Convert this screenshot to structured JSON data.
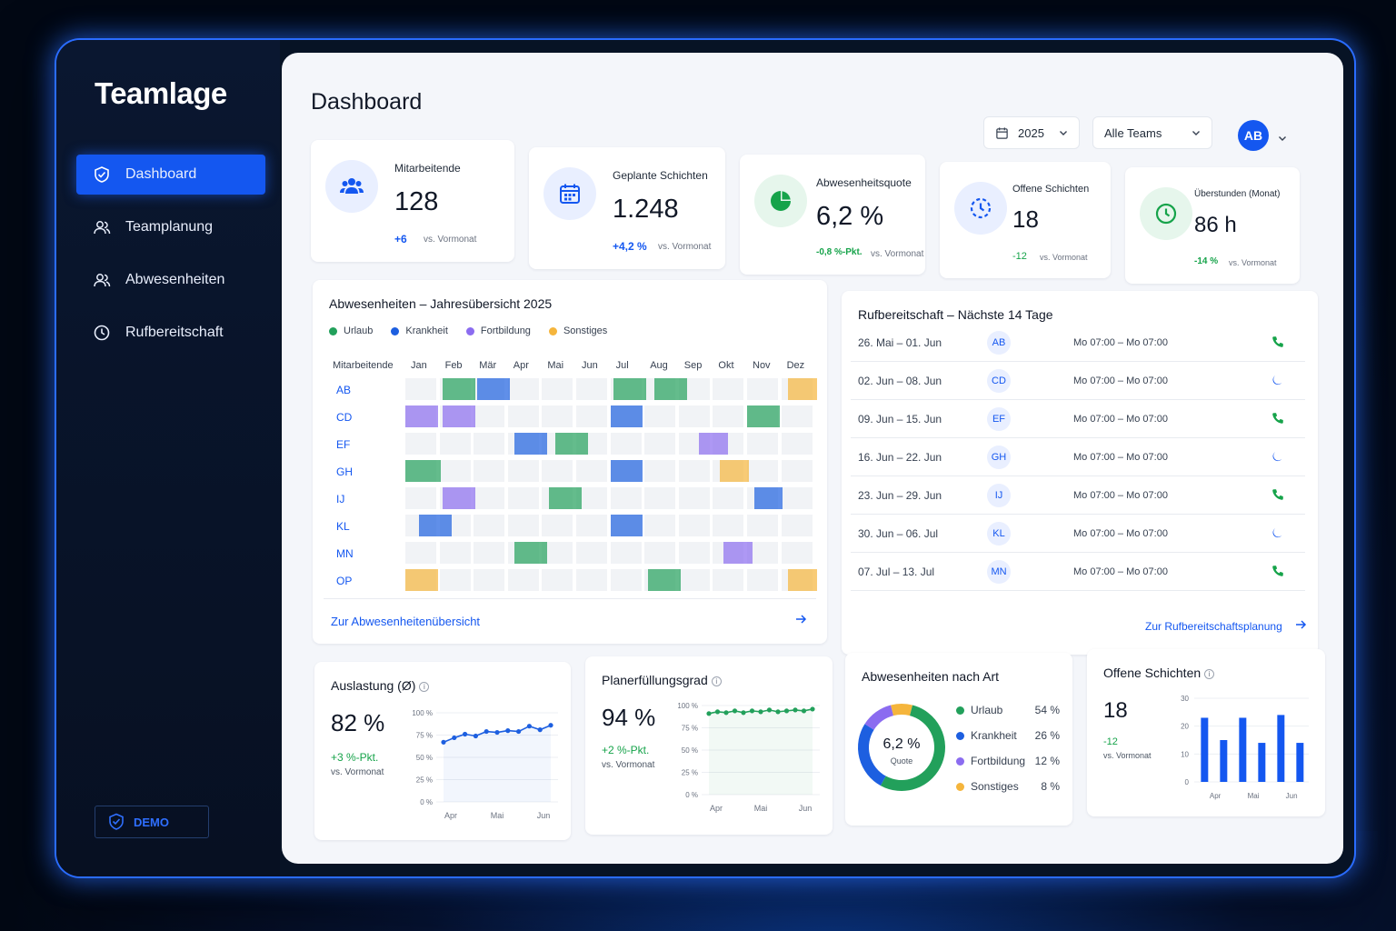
{
  "app": {
    "name": "Teamlage",
    "demo_label": "DEMO"
  },
  "colors": {
    "accent": "#1457f0",
    "green": "#16a34a",
    "urlaub": "#22a05b",
    "krankheit": "#1d5fe0",
    "fortbildung": "#8b6cf0",
    "sonstiges": "#f5b53c"
  },
  "sidebar": {
    "items": [
      {
        "label": "Dashboard",
        "icon": "shield-check-icon",
        "active": true
      },
      {
        "label": "Teamplanung",
        "icon": "users-icon",
        "active": false
      },
      {
        "label": "Abwesenheiten",
        "icon": "users-icon",
        "active": false
      },
      {
        "label": "Rufbereitschaft",
        "icon": "clock-icon",
        "active": false
      }
    ]
  },
  "header": {
    "title": "Dashboard",
    "year": "2025",
    "team": "Alle Teams",
    "avatar": "AB"
  },
  "kpis": [
    {
      "label": "Mitarbeitende",
      "value": "128",
      "delta": "+6",
      "vs": "vs. Vormonat",
      "icon": "users-icon"
    },
    {
      "label": "Geplante Schichten",
      "value": "1.248",
      "delta": "+4,2 %",
      "vs": "vs. Vormonat",
      "icon": "calendar-icon"
    },
    {
      "label": "Abwesenheitsquote",
      "value": "6,2 %",
      "delta": "-0,8 %-Pkt.",
      "vs": "vs. Vormonat",
      "icon": "pie-icon"
    },
    {
      "label": "Offene Schichten",
      "value": "18",
      "delta": "-12",
      "vs": "vs. Vormonat",
      "icon": "clock-dashed-icon"
    },
    {
      "label": "Überstunden (Monat)",
      "value": "86 h",
      "delta": "-14 %",
      "vs": "vs. Vormonat",
      "icon": "clock-icon"
    }
  ],
  "absences": {
    "title": "Abwesenheiten – Jahresübersicht 2025",
    "legend": [
      "Urlaub",
      "Krankheit",
      "Fortbildung",
      "Sonstiges"
    ],
    "col_header": "Mitarbeitende",
    "months": [
      "Jan",
      "Feb",
      "Mär",
      "Apr",
      "Mai",
      "Jun",
      "Jul",
      "Aug",
      "Sep",
      "Okt",
      "Nov",
      "Dez"
    ],
    "employees": [
      "AB",
      "CD",
      "EF",
      "GH",
      "IJ",
      "KL",
      "MN",
      "OP"
    ],
    "entries": [
      {
        "row": 0,
        "month": 1.1,
        "length": 1,
        "type": "urlaub"
      },
      {
        "row": 0,
        "month": 2.1,
        "length": 1,
        "type": "krankheit"
      },
      {
        "row": 0,
        "month": 6.1,
        "length": 1,
        "type": "urlaub"
      },
      {
        "row": 0,
        "month": 7.3,
        "length": 1,
        "type": "urlaub"
      },
      {
        "row": 0,
        "month": 11.2,
        "length": 0.9,
        "type": "sonstiges"
      },
      {
        "row": 1,
        "month": 0.0,
        "length": 1,
        "type": "fortbildung"
      },
      {
        "row": 1,
        "month": 1.1,
        "length": 1,
        "type": "fortbildung"
      },
      {
        "row": 1,
        "month": 6.0,
        "length": 1,
        "type": "krankheit"
      },
      {
        "row": 1,
        "month": 10.0,
        "length": 1,
        "type": "urlaub"
      },
      {
        "row": 2,
        "month": 3.2,
        "length": 1,
        "type": "krankheit"
      },
      {
        "row": 2,
        "month": 4.4,
        "length": 1,
        "type": "urlaub"
      },
      {
        "row": 2,
        "month": 8.6,
        "length": 0.9,
        "type": "fortbildung"
      },
      {
        "row": 3,
        "month": 0.0,
        "length": 1.1,
        "type": "urlaub"
      },
      {
        "row": 3,
        "month": 6.0,
        "length": 1,
        "type": "krankheit"
      },
      {
        "row": 3,
        "month": 9.2,
        "length": 0.9,
        "type": "sonstiges"
      },
      {
        "row": 4,
        "month": 1.1,
        "length": 1,
        "type": "fortbildung"
      },
      {
        "row": 4,
        "month": 4.2,
        "length": 1,
        "type": "urlaub"
      },
      {
        "row": 4,
        "month": 10.2,
        "length": 0.9,
        "type": "krankheit"
      },
      {
        "row": 5,
        "month": 0.4,
        "length": 1,
        "type": "krankheit"
      },
      {
        "row": 5,
        "month": 6.0,
        "length": 1,
        "type": "krankheit"
      },
      {
        "row": 6,
        "month": 3.2,
        "length": 1,
        "type": "urlaub"
      },
      {
        "row": 6,
        "month": 9.3,
        "length": 0.9,
        "type": "fortbildung"
      },
      {
        "row": 7,
        "month": 0.0,
        "length": 1,
        "type": "sonstiges"
      },
      {
        "row": 7,
        "month": 7.1,
        "length": 1,
        "type": "urlaub"
      },
      {
        "row": 7,
        "month": 11.2,
        "length": 0.9,
        "type": "sonstiges"
      }
    ],
    "link": "Zur Abwesenheitenübersicht"
  },
  "oncall": {
    "title": "Rufbereitschaft – Nächste 14 Tage",
    "rows": [
      {
        "range": "26. Mai – 01. Jun",
        "initials": "AB",
        "time": "Mo 07:00 – Mo 07:00",
        "icon": "phone-icon"
      },
      {
        "range": "02. Jun – 08. Jun",
        "initials": "CD",
        "time": "Mo 07:00 – Mo 07:00",
        "icon": "moon-icon"
      },
      {
        "range": "09. Jun – 15. Jun",
        "initials": "EF",
        "time": "Mo 07:00 – Mo 07:00",
        "icon": "phone-icon"
      },
      {
        "range": "16. Jun – 22. Jun",
        "initials": "GH",
        "time": "Mo 07:00 – Mo 07:00",
        "icon": "moon-icon"
      },
      {
        "range": "23. Jun – 29. Jun",
        "initials": "IJ",
        "time": "Mo 07:00 – Mo 07:00",
        "icon": "phone-icon"
      },
      {
        "range": "30. Jun – 06. Jul",
        "initials": "KL",
        "time": "Mo 07:00 – Mo 07:00",
        "icon": "moon-icon"
      },
      {
        "range": "07. Jul – 13. Jul",
        "initials": "MN",
        "time": "Mo 07:00 – Mo 07:00",
        "icon": "phone-icon"
      }
    ],
    "link": "Zur Rufbereitschaftsplanung"
  },
  "utilization": {
    "title": "Auslastung (Ø)",
    "value": "82 %",
    "delta": "+3 %-Pkt.",
    "vs": "vs. Vormonat",
    "yticks": [
      "100 %",
      "75 %",
      "50 %",
      "25 %",
      "0 %"
    ],
    "xticks": [
      "Apr",
      "Mai",
      "Jun"
    ]
  },
  "fulfillment": {
    "title": "Planerfüllungsgrad",
    "value": "94 %",
    "delta": "+2 %-Pkt.",
    "vs": "vs. Vormonat",
    "yticks": [
      "100 %",
      "75 %",
      "50 %",
      "25 %",
      "0 %"
    ],
    "xticks": [
      "Apr",
      "Mai",
      "Jun"
    ]
  },
  "absence_types": {
    "title": "Abwesenheiten nach Art",
    "center_value": "6,2 %",
    "center_label": "Quote",
    "items": [
      {
        "label": "Urlaub",
        "pct": "54 %"
      },
      {
        "label": "Krankheit",
        "pct": "26 %"
      },
      {
        "label": "Fortbildung",
        "pct": "12 %"
      },
      {
        "label": "Sonstiges",
        "pct": "8 %"
      }
    ]
  },
  "open_shifts": {
    "title": "Offene Schichten",
    "value": "18",
    "delta": "-12",
    "vs": "vs. Vormonat",
    "yticks": [
      "30",
      "20",
      "10",
      "0"
    ],
    "xticks": [
      "Apr",
      "Mai",
      "Jun"
    ]
  },
  "chart_data": [
    {
      "type": "line",
      "title": "Auslastung (Ø)",
      "x": [
        "Apr",
        "",
        "",
        "",
        "",
        "Mai",
        "",
        "",
        "",
        "",
        "Jun"
      ],
      "series": [
        {
          "values": [
            67,
            72,
            76,
            74,
            79,
            78,
            80,
            79,
            85,
            81,
            86
          ]
        }
      ],
      "ylim": [
        0,
        100
      ]
    },
    {
      "type": "line",
      "title": "Planerfüllungsgrad",
      "x": [
        "Apr",
        "",
        "",
        "",
        "",
        "",
        "Mai",
        "",
        "",
        "",
        "",
        "",
        "Jun"
      ],
      "series": [
        {
          "values": [
            91,
            93,
            92,
            94,
            92,
            94,
            93,
            95,
            93,
            94,
            95,
            94,
            96
          ]
        }
      ],
      "ylim": [
        0,
        100
      ]
    },
    {
      "type": "pie",
      "title": "Abwesenheiten nach Art",
      "categories": [
        "Urlaub",
        "Krankheit",
        "Fortbildung",
        "Sonstiges"
      ],
      "values": [
        54,
        26,
        12,
        8
      ]
    },
    {
      "type": "bar",
      "title": "Offene Schichten",
      "categories": [
        "",
        "Apr",
        "",
        "Mai",
        "",
        "Jun"
      ],
      "values": [
        23,
        15,
        23,
        14,
        24,
        14
      ],
      "ylim": [
        0,
        30
      ]
    }
  ]
}
